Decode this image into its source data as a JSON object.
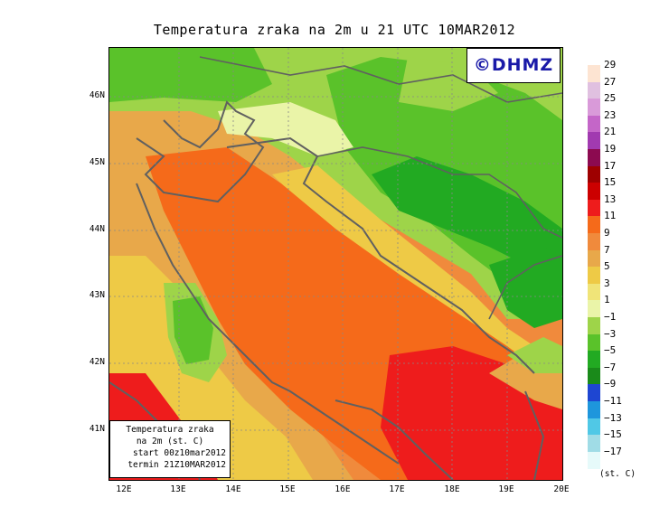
{
  "title": "Temperatura zraka na 2m u 21 UTC 10MAR2012",
  "brand": "©DHMZ",
  "info_box": {
    "line1": "Temperatura zraka",
    "line2": "na 2m (st. C)",
    "line3": "start 00z10mar2012",
    "line4": "termin 21Z10MAR2012"
  },
  "lat_labels": [
    "46N",
    "45N",
    "44N",
    "43N",
    "42N",
    "41N"
  ],
  "lon_labels": [
    "12E",
    "13E",
    "14E",
    "15E",
    "16E",
    "17E",
    "18E",
    "19E",
    "20E"
  ],
  "legend": {
    "unit": "(st. C)",
    "labels": [
      "29",
      "27",
      "25",
      "23",
      "21",
      "19",
      "17",
      "15",
      "13",
      "11",
      "9",
      "7",
      "5",
      "3",
      "1",
      "−1",
      "−3",
      "−5",
      "−7",
      "−9",
      "−11",
      "−13",
      "−15",
      "−17"
    ],
    "colors": [
      "#fde4d2",
      "#e0c0e0",
      "#d99ad9",
      "#c466c8",
      "#a13ab0",
      "#8c0a50",
      "#9e0000",
      "#cc0000",
      "#ee1c1c",
      "#f56a1a",
      "#f08a3c",
      "#e8a84a",
      "#eeca46",
      "#f0e478",
      "#eaf4a8",
      "#9ed449",
      "#5ac22a",
      "#22aa22",
      "#1a8a1a",
      "#1e46d2",
      "#1e96dc",
      "#50c8e6",
      "#a0dce6",
      "#e6fafa"
    ]
  },
  "colors": {
    "sea_warm": "#f08a3c",
    "sea_hot": "#ee1c1c",
    "land_green": "#5ac22a",
    "coast": "#606060"
  }
}
